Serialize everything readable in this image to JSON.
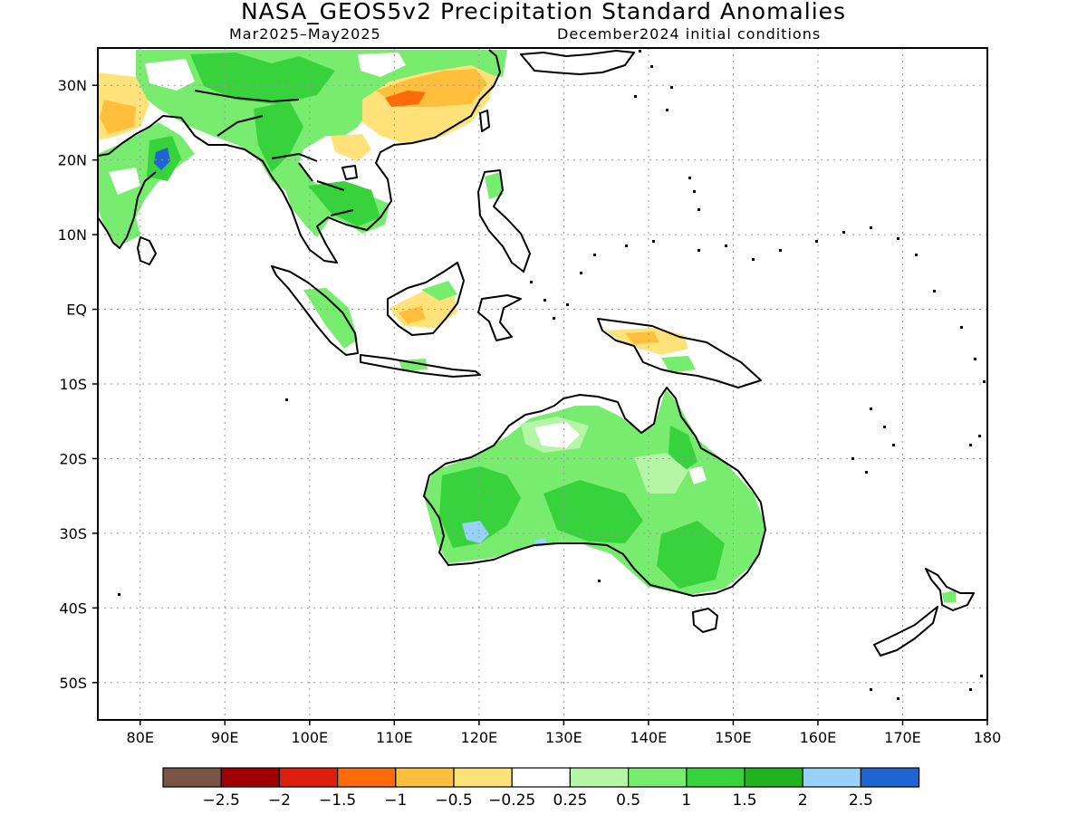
{
  "title": "NASA_GEOS5v2 Precipitation Standard Anomalies",
  "subtitle_period": "Mar2025–May2025",
  "subtitle_init": "December2024 initial conditions",
  "map": {
    "projection": "lat-lon",
    "lon_range": [
      75,
      180
    ],
    "lat_range": [
      -55,
      35
    ],
    "lon_ticks": [
      {
        "value": 80,
        "label": "80E"
      },
      {
        "value": 90,
        "label": "90E"
      },
      {
        "value": 100,
        "label": "100E"
      },
      {
        "value": 110,
        "label": "110E"
      },
      {
        "value": 120,
        "label": "120E"
      },
      {
        "value": 130,
        "label": "130E"
      },
      {
        "value": 140,
        "label": "140E"
      },
      {
        "value": 150,
        "label": "150E"
      },
      {
        "value": 160,
        "label": "160E"
      },
      {
        "value": 170,
        "label": "170E"
      },
      {
        "value": 180,
        "label": "180"
      }
    ],
    "lat_ticks": [
      {
        "value": 30,
        "label": "30N"
      },
      {
        "value": 20,
        "label": "20N"
      },
      {
        "value": 10,
        "label": "10N"
      },
      {
        "value": 0,
        "label": "EQ"
      },
      {
        "value": -10,
        "label": "10S"
      },
      {
        "value": -20,
        "label": "20S"
      },
      {
        "value": -30,
        "label": "30S"
      },
      {
        "value": -40,
        "label": "40S"
      },
      {
        "value": -50,
        "label": "50S"
      }
    ],
    "grid": true
  },
  "colorbar": {
    "colors": [
      "#7a5545",
      "#a10000",
      "#de1e0d",
      "#ff6a0a",
      "#ffbf3c",
      "#ffe37a",
      "#ffffff",
      "#b4f5a6",
      "#78ec6e",
      "#37d23c",
      "#1fb41f",
      "#96d2fa",
      "#1e64d2"
    ],
    "labels": [
      "−2.5",
      "−2",
      "−1.5",
      "−1",
      "−0.5",
      "−0.25",
      "0.25",
      "0.5",
      "1",
      "1.5",
      "2",
      "2.5"
    ]
  }
}
